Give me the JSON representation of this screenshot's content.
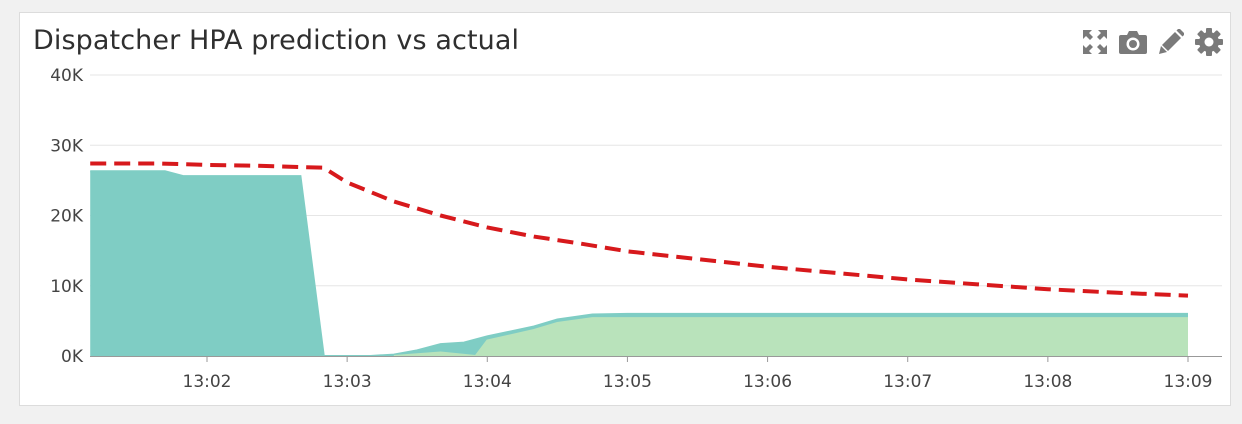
{
  "widget": {
    "title": "Dispatcher HPA prediction vs actual",
    "tools": [
      {
        "name": "expand-icon"
      },
      {
        "name": "camera-icon"
      },
      {
        "name": "pencil-icon"
      },
      {
        "name": "gear-icon"
      }
    ],
    "icon_color": "#7a7a7a"
  },
  "chart_data": {
    "type": "area",
    "title": "Dispatcher HPA prediction vs actual",
    "xlabel": "",
    "ylabel": "",
    "x_ticks": [
      "13:02",
      "13:03",
      "13:04",
      "13:05",
      "13:06",
      "13:07",
      "13:08",
      "13:09"
    ],
    "y_ticks": [
      "0K",
      "10K",
      "20K",
      "30K",
      "40K"
    ],
    "xlim": [
      "13:01:10",
      "13:09:15"
    ],
    "ylim": [
      0,
      40000
    ],
    "grid": "horizontal",
    "series": [
      {
        "style": "dashed-line",
        "color": "#d7191c",
        "points": [
          [
            "13:01:10",
            27400
          ],
          [
            "13:01:40",
            27400
          ],
          [
            "13:02:00",
            27200
          ],
          [
            "13:02:20",
            27100
          ],
          [
            "13:02:40",
            26900
          ],
          [
            "13:02:50",
            26800
          ],
          [
            "13:03:00",
            24700
          ],
          [
            "13:03:20",
            22000
          ],
          [
            "13:03:40",
            20000
          ],
          [
            "13:04:00",
            18300
          ],
          [
            "13:04:20",
            17000
          ],
          [
            "13:04:40",
            16000
          ],
          [
            "13:05:00",
            14900
          ],
          [
            "13:05:30",
            13800
          ],
          [
            "13:06:00",
            12700
          ],
          [
            "13:06:30",
            11800
          ],
          [
            "13:07:00",
            10900
          ],
          [
            "13:07:30",
            10200
          ],
          [
            "13:08:00",
            9500
          ],
          [
            "13:08:30",
            9000
          ],
          [
            "13:09:00",
            8600
          ]
        ]
      },
      {
        "style": "area",
        "color": "#7fcdc4",
        "points": [
          [
            "13:01:10",
            26300
          ],
          [
            "13:01:42",
            26300
          ],
          [
            "13:01:50",
            25600
          ],
          [
            "13:02:40",
            25600
          ],
          [
            "13:02:50",
            0
          ],
          [
            "13:03:00",
            0
          ],
          [
            "13:03:10",
            0
          ],
          [
            "13:03:20",
            200
          ],
          [
            "13:03:30",
            800
          ],
          [
            "13:03:40",
            1700
          ],
          [
            "13:03:50",
            1900
          ],
          [
            "13:04:00",
            2800
          ],
          [
            "13:04:20",
            4200
          ],
          [
            "13:04:30",
            5200
          ],
          [
            "13:04:45",
            5900
          ],
          [
            "13:05:00",
            6000
          ],
          [
            "13:06:00",
            6000
          ],
          [
            "13:07:00",
            6000
          ],
          [
            "13:08:00",
            6000
          ],
          [
            "13:09:00",
            6000
          ]
        ]
      },
      {
        "style": "area",
        "color": "#b9e3bb",
        "points": [
          [
            "13:03:20",
            0
          ],
          [
            "13:03:40",
            500
          ],
          [
            "13:03:55",
            0
          ],
          [
            "13:04:00",
            2200
          ],
          [
            "13:04:20",
            3700
          ],
          [
            "13:04:30",
            4700
          ],
          [
            "13:04:45",
            5400
          ],
          [
            "13:05:00",
            5400
          ],
          [
            "13:06:00",
            5400
          ],
          [
            "13:07:00",
            5400
          ],
          [
            "13:08:00",
            5400
          ],
          [
            "13:09:00",
            5400
          ]
        ]
      }
    ]
  }
}
